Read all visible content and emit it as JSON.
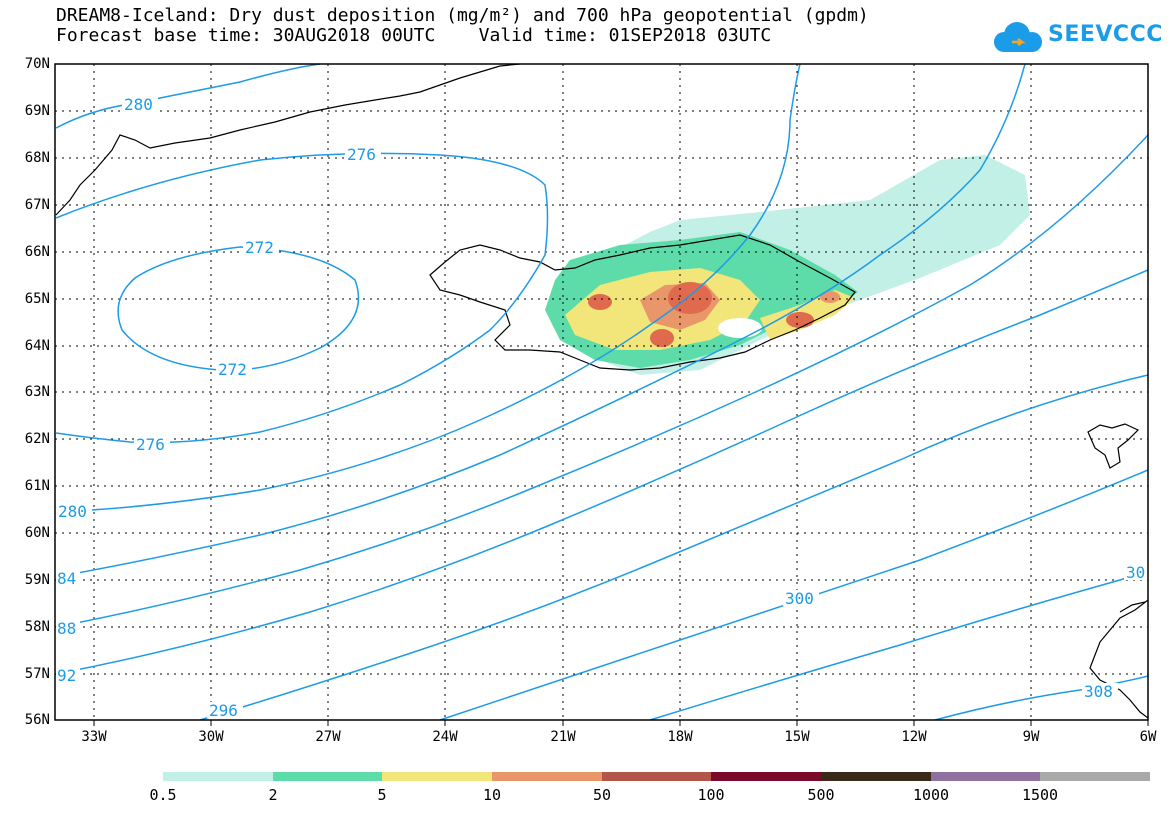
{
  "title": {
    "line1": "DREAM8-Iceland: Dry dust deposition (mg/m²) and 700 hPa geopotential (gpdm)",
    "line2": "Forecast base time: 30AUG2018 00UTC    Valid time: 01SEP2018 03UTC"
  },
  "logo": {
    "text": "SEEVCCC",
    "icon": "cloud-icon",
    "color": "#1b9ce8"
  },
  "map": {
    "lat_labels": [
      "70N",
      "69N",
      "68N",
      "67N",
      "66N",
      "65N",
      "64N",
      "63N",
      "62N",
      "61N",
      "60N",
      "59N",
      "58N",
      "57N",
      "56N"
    ],
    "lon_labels": [
      "33W",
      "30W",
      "27W",
      "24W",
      "21W",
      "18W",
      "15W",
      "12W",
      "9W",
      "6W"
    ],
    "contour_color": "#1e9be6",
    "contour_labels": [
      "280",
      "276",
      "272",
      "272",
      "276",
      "280",
      "84",
      "88",
      "92",
      "296",
      "300",
      "30",
      "308"
    ]
  },
  "legend": {
    "labels": [
      "0.5",
      "2",
      "5",
      "10",
      "50",
      "100",
      "500",
      "1000",
      "1500"
    ],
    "colors": [
      "#c2f0e6",
      "#5ddcaa",
      "#f2e67a",
      "#e8966a",
      "#b2564a",
      "#7a0a2a",
      "#3a2818",
      "#90709e",
      "#a9a9a9"
    ]
  }
}
